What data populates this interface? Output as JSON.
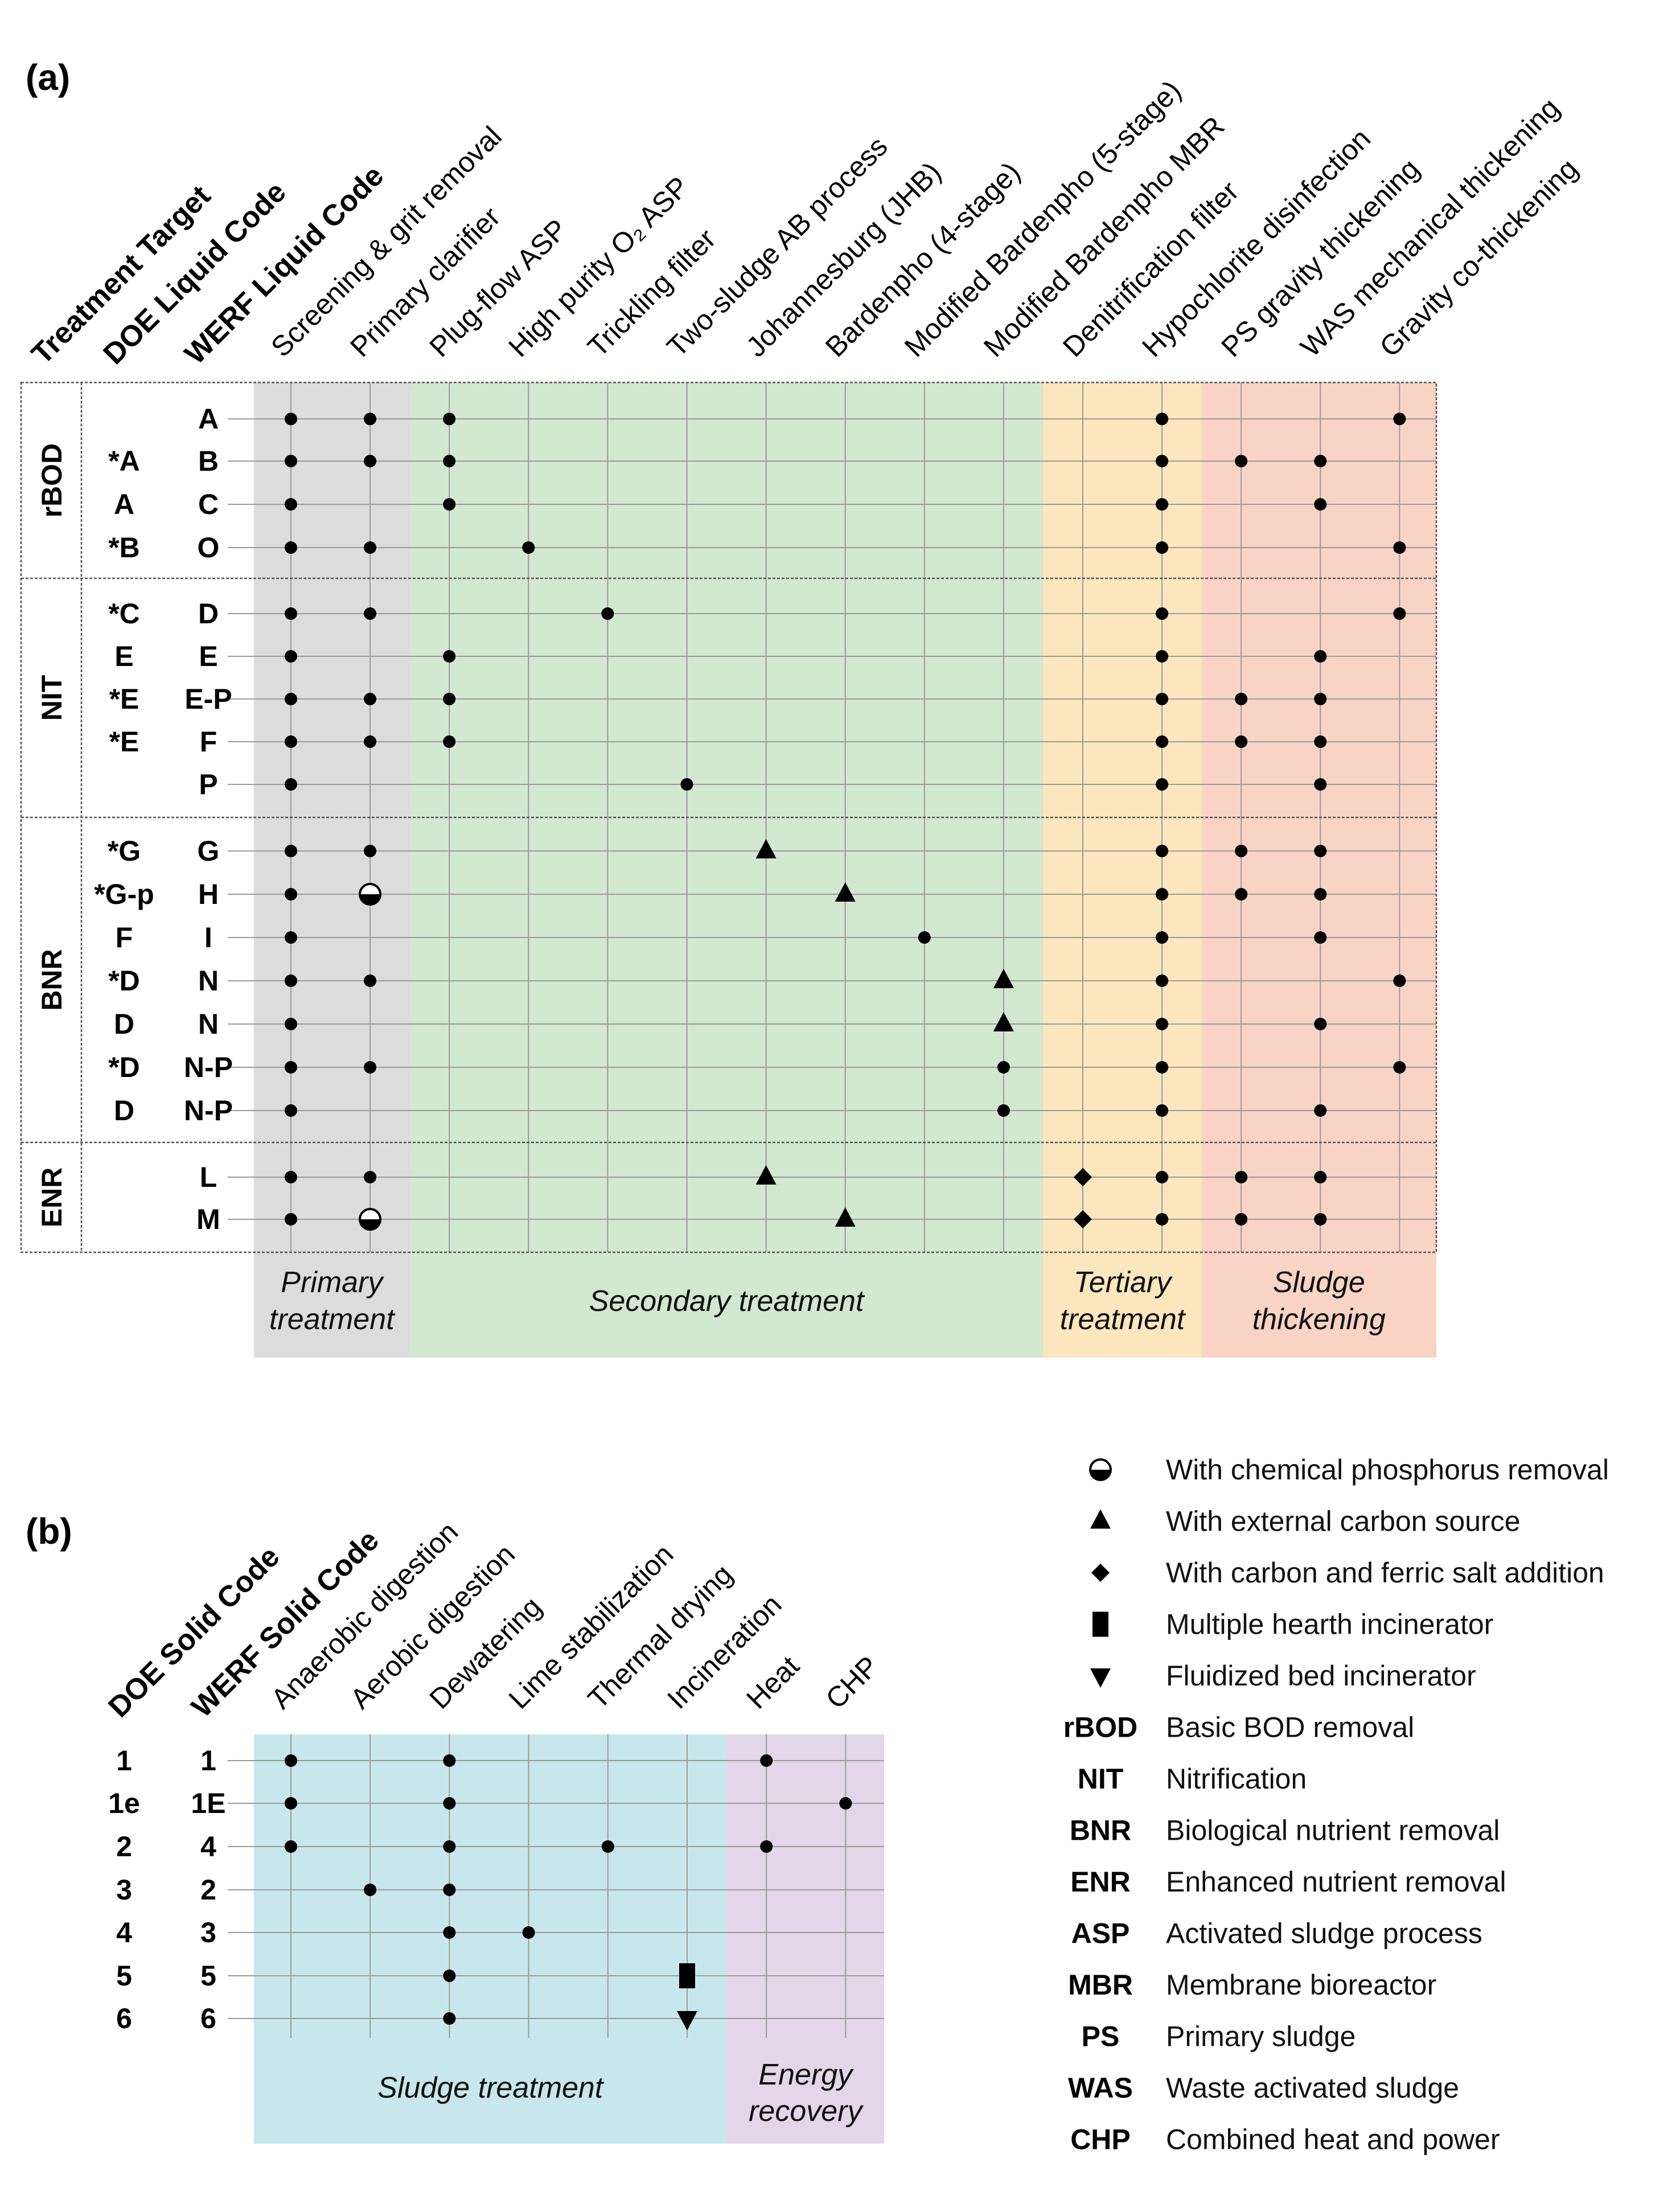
{
  "panel_a": {
    "label": "(a)",
    "row_header_titles": [
      "Treatment Target",
      "DOE Liquid Code",
      "WERF Liquid Code"
    ],
    "columns": [
      "Screening & grit removal",
      "Primary clarifier",
      "Plug-flow ASP",
      "High purity O₂ ASP",
      "Trickling filter",
      "Two-sludge AB process",
      "Johannesburg (JHB)",
      "Bardenpho (4-stage)",
      "Modified Bardenpho (5-stage)",
      "Modified Bardenpho MBR",
      "Denitrification filter",
      "Hypochlorite disinfection",
      "PS gravity thickening",
      "WAS mechanical thickening",
      "Gravity co-thickening"
    ],
    "zones": [
      {
        "label": "Primary treatment",
        "color": "#dcdcdc",
        "from_col": 0,
        "to_col": 1
      },
      {
        "label": "Secondary treatment",
        "color": "#d2e8d0",
        "from_col": 2,
        "to_col": 9
      },
      {
        "label": "Tertiary treatment",
        "color": "#fbe6bd",
        "from_col": 10,
        "to_col": 11
      },
      {
        "label": "Sludge thickening",
        "color": "#f9d3c4",
        "from_col": 12,
        "to_col": 14
      }
    ],
    "groups": [
      {
        "target": "rBOD",
        "rows": [
          {
            "doe": "",
            "werf": "A",
            "marks": [
              [
                0,
                "dot"
              ],
              [
                1,
                "dot"
              ],
              [
                2,
                "dot"
              ],
              [
                11,
                "dot"
              ],
              [
                14,
                "dot"
              ]
            ]
          },
          {
            "doe": "*A",
            "werf": "B",
            "marks": [
              [
                0,
                "dot"
              ],
              [
                1,
                "dot"
              ],
              [
                2,
                "dot"
              ],
              [
                11,
                "dot"
              ],
              [
                12,
                "dot"
              ],
              [
                13,
                "dot"
              ]
            ]
          },
          {
            "doe": "A",
            "werf": "C",
            "marks": [
              [
                0,
                "dot"
              ],
              [
                2,
                "dot"
              ],
              [
                11,
                "dot"
              ],
              [
                13,
                "dot"
              ]
            ]
          },
          {
            "doe": "*B",
            "werf": "O",
            "marks": [
              [
                0,
                "dot"
              ],
              [
                1,
                "dot"
              ],
              [
                3,
                "dot"
              ],
              [
                11,
                "dot"
              ],
              [
                14,
                "dot"
              ]
            ]
          }
        ]
      },
      {
        "target": "NIT",
        "rows": [
          {
            "doe": "*C",
            "werf": "D",
            "marks": [
              [
                0,
                "dot"
              ],
              [
                1,
                "dot"
              ],
              [
                4,
                "dot"
              ],
              [
                11,
                "dot"
              ],
              [
                14,
                "dot"
              ]
            ]
          },
          {
            "doe": "E",
            "werf": "E",
            "marks": [
              [
                0,
                "dot"
              ],
              [
                2,
                "dot"
              ],
              [
                11,
                "dot"
              ],
              [
                13,
                "dot"
              ]
            ]
          },
          {
            "doe": "*E",
            "werf": "E-P",
            "marks": [
              [
                0,
                "dot"
              ],
              [
                1,
                "dot"
              ],
              [
                2,
                "dot"
              ],
              [
                11,
                "dot"
              ],
              [
                12,
                "dot"
              ],
              [
                13,
                "dot"
              ]
            ]
          },
          {
            "doe": "*E",
            "werf": "F",
            "marks": [
              [
                0,
                "dot"
              ],
              [
                1,
                "dot"
              ],
              [
                2,
                "dot"
              ],
              [
                11,
                "dot"
              ],
              [
                12,
                "dot"
              ],
              [
                13,
                "dot"
              ]
            ]
          },
          {
            "doe": "",
            "werf": "P",
            "marks": [
              [
                0,
                "dot"
              ],
              [
                5,
                "dot"
              ],
              [
                11,
                "dot"
              ],
              [
                13,
                "dot"
              ]
            ]
          }
        ]
      },
      {
        "target": "BNR",
        "rows": [
          {
            "doe": "*G",
            "werf": "G",
            "marks": [
              [
                0,
                "dot"
              ],
              [
                1,
                "dot"
              ],
              [
                6,
                "triangle"
              ],
              [
                11,
                "dot"
              ],
              [
                12,
                "dot"
              ],
              [
                13,
                "dot"
              ]
            ]
          },
          {
            "doe": "*G-p",
            "werf": "H",
            "marks": [
              [
                0,
                "dot"
              ],
              [
                1,
                "half"
              ],
              [
                7,
                "triangle"
              ],
              [
                11,
                "dot"
              ],
              [
                12,
                "dot"
              ],
              [
                13,
                "dot"
              ]
            ]
          },
          {
            "doe": "F",
            "werf": "I",
            "marks": [
              [
                0,
                "dot"
              ],
              [
                8,
                "dot"
              ],
              [
                11,
                "dot"
              ],
              [
                13,
                "dot"
              ]
            ]
          },
          {
            "doe": "*D",
            "werf": "N",
            "marks": [
              [
                0,
                "dot"
              ],
              [
                1,
                "dot"
              ],
              [
                9,
                "triangle"
              ],
              [
                11,
                "dot"
              ],
              [
                14,
                "dot"
              ]
            ]
          },
          {
            "doe": "D",
            "werf": "N",
            "marks": [
              [
                0,
                "dot"
              ],
              [
                9,
                "triangle"
              ],
              [
                11,
                "dot"
              ],
              [
                13,
                "dot"
              ]
            ]
          },
          {
            "doe": "*D",
            "werf": "N-P",
            "marks": [
              [
                0,
                "dot"
              ],
              [
                1,
                "dot"
              ],
              [
                9,
                "dot"
              ],
              [
                11,
                "dot"
              ],
              [
                14,
                "dot"
              ]
            ]
          },
          {
            "doe": "D",
            "werf": "N-P",
            "marks": [
              [
                0,
                "dot"
              ],
              [
                9,
                "dot"
              ],
              [
                11,
                "dot"
              ],
              [
                13,
                "dot"
              ]
            ]
          }
        ]
      },
      {
        "target": "ENR",
        "rows": [
          {
            "doe": "",
            "werf": "L",
            "marks": [
              [
                0,
                "dot"
              ],
              [
                1,
                "dot"
              ],
              [
                6,
                "triangle"
              ],
              [
                10,
                "diamond"
              ],
              [
                11,
                "dot"
              ],
              [
                12,
                "dot"
              ],
              [
                13,
                "dot"
              ]
            ]
          },
          {
            "doe": "",
            "werf": "M",
            "marks": [
              [
                0,
                "dot"
              ],
              [
                1,
                "half"
              ],
              [
                7,
                "triangle"
              ],
              [
                10,
                "diamond"
              ],
              [
                11,
                "dot"
              ],
              [
                12,
                "dot"
              ],
              [
                13,
                "dot"
              ]
            ]
          }
        ]
      }
    ]
  },
  "panel_b": {
    "label": "(b)",
    "row_header_titles": [
      "DOE Solid Code",
      "WERF Solid Code"
    ],
    "columns": [
      "Anaerobic digestion",
      "Aerobic digestion",
      "Dewatering",
      "Lime stabilization",
      "Thermal drying",
      "Incineration",
      "Heat",
      "CHP"
    ],
    "zones": [
      {
        "label": "Sludge treatment",
        "color": "#c7e7ec",
        "from_col": 0,
        "to_col": 5
      },
      {
        "label": "Energy recovery",
        "color": "#e2d6e8",
        "from_col": 6,
        "to_col": 7
      }
    ],
    "rows": [
      {
        "doe": "1",
        "werf": "1",
        "marks": [
          [
            0,
            "dot"
          ],
          [
            2,
            "dot"
          ],
          [
            6,
            "dot"
          ]
        ]
      },
      {
        "doe": "1e",
        "werf": "1E",
        "marks": [
          [
            0,
            "dot"
          ],
          [
            2,
            "dot"
          ],
          [
            7,
            "dot"
          ]
        ]
      },
      {
        "doe": "2",
        "werf": "4",
        "marks": [
          [
            0,
            "dot"
          ],
          [
            2,
            "dot"
          ],
          [
            4,
            "dot"
          ],
          [
            6,
            "dot"
          ]
        ]
      },
      {
        "doe": "3",
        "werf": "2",
        "marks": [
          [
            1,
            "dot"
          ],
          [
            2,
            "dot"
          ]
        ]
      },
      {
        "doe": "4",
        "werf": "3",
        "marks": [
          [
            2,
            "dot"
          ],
          [
            3,
            "dot"
          ]
        ]
      },
      {
        "doe": "5",
        "werf": "5",
        "marks": [
          [
            2,
            "dot"
          ],
          [
            5,
            "rect"
          ]
        ]
      },
      {
        "doe": "6",
        "werf": "6",
        "marks": [
          [
            2,
            "dot"
          ],
          [
            5,
            "triangle-down"
          ]
        ]
      }
    ]
  },
  "legend": {
    "symbols": [
      {
        "symbol": "half",
        "text": "With chemical phosphorus removal"
      },
      {
        "symbol": "triangle",
        "text": "With external carbon source"
      },
      {
        "symbol": "diamond",
        "text": "With carbon and ferric salt addition"
      },
      {
        "symbol": "rect",
        "text": "Multiple hearth incinerator"
      },
      {
        "symbol": "triangle-down",
        "text": "Fluidized bed incinerator"
      }
    ],
    "abbreviations": [
      {
        "abbr": "rBOD",
        "text": "Basic BOD removal"
      },
      {
        "abbr": "NIT",
        "text": "Nitrification"
      },
      {
        "abbr": "BNR",
        "text": "Biological nutrient removal"
      },
      {
        "abbr": "ENR",
        "text": "Enhanced nutrient removal"
      },
      {
        "abbr": "ASP",
        "text": "Activated sludge process"
      },
      {
        "abbr": "MBR",
        "text": "Membrane bioreactor"
      },
      {
        "abbr": "PS",
        "text": "Primary sludge"
      },
      {
        "abbr": "WAS",
        "text": "Waste activated sludge"
      },
      {
        "abbr": "CHP",
        "text": "Combined heat and power"
      }
    ]
  }
}
